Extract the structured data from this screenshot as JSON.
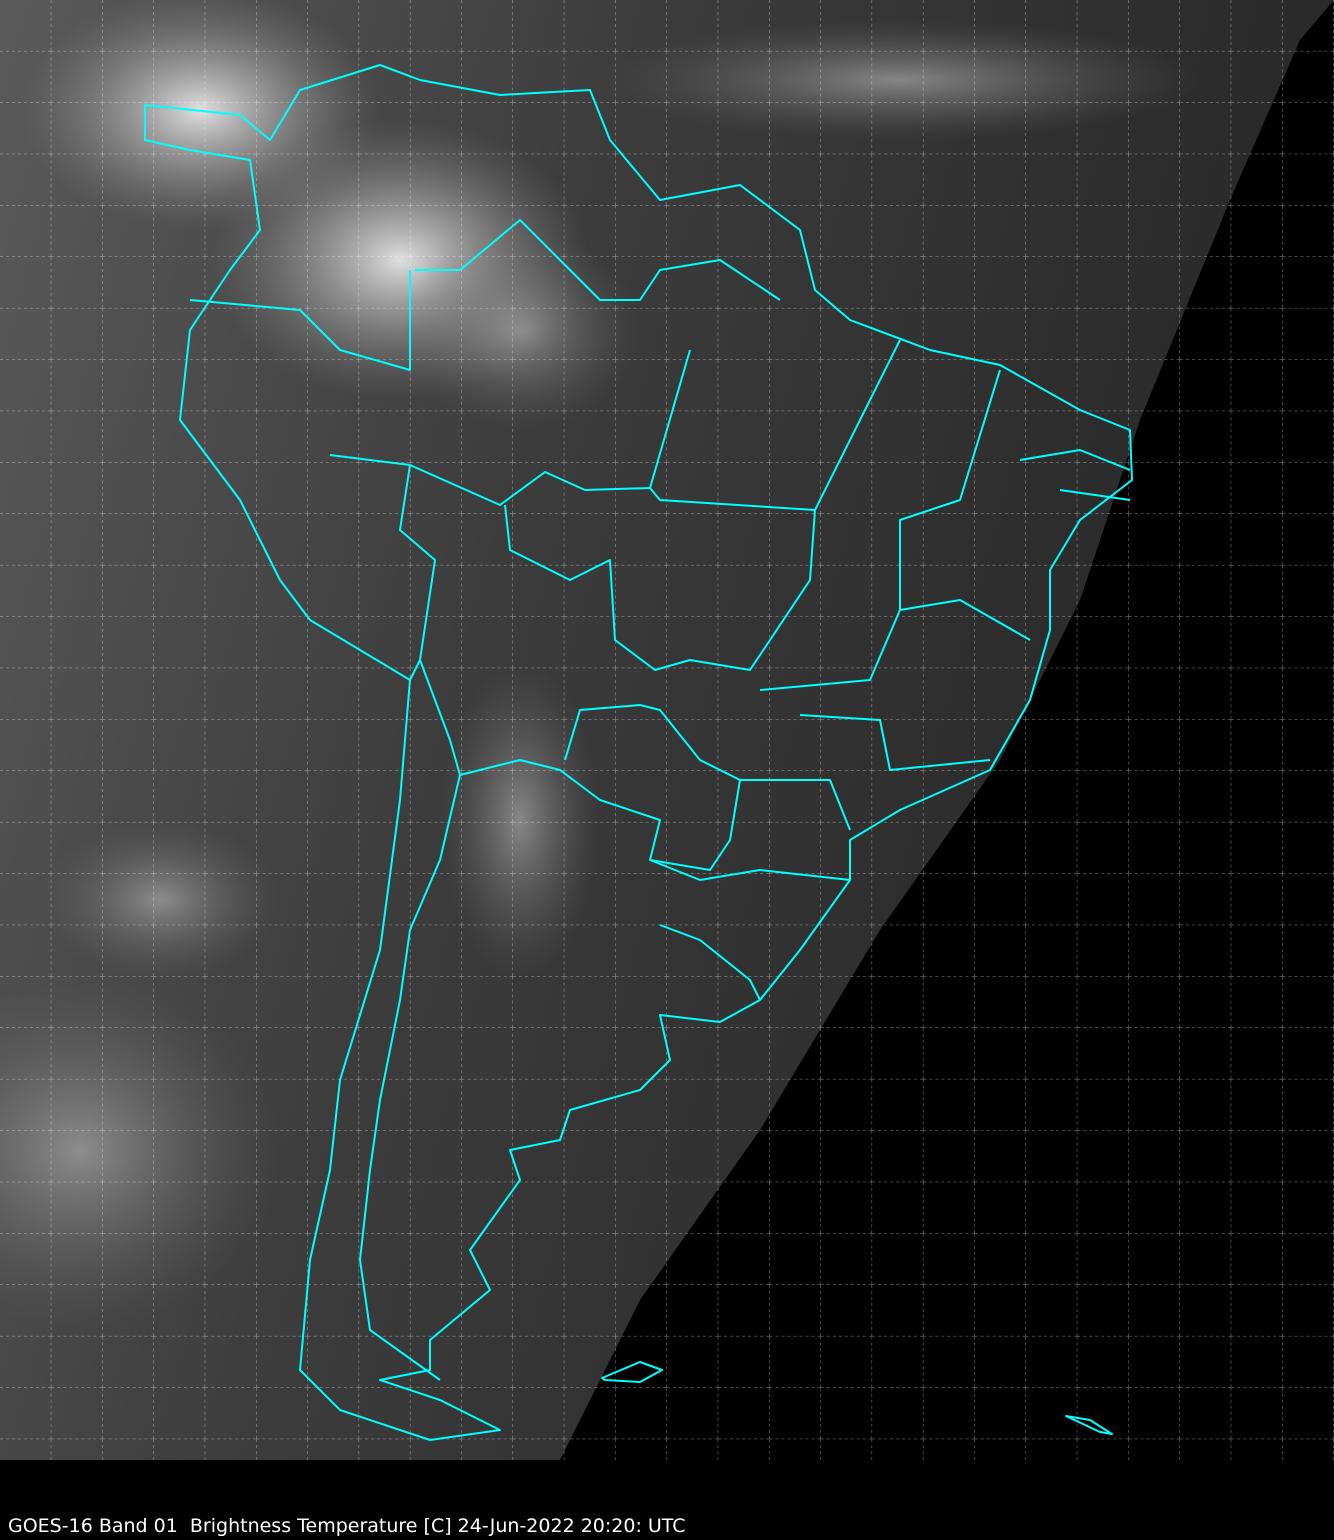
{
  "caption": "GOES-16 Band 01  Brightness Temperature [C] 24-Jun-2022 20:20: UTC",
  "colors": {
    "coastline": "#00ffff",
    "grid": "#ffffff",
    "background": "#000000"
  },
  "map": {
    "imagery": "satellite visible band grayscale",
    "region": "South America",
    "grid": true,
    "grid_style": "dashed"
  }
}
